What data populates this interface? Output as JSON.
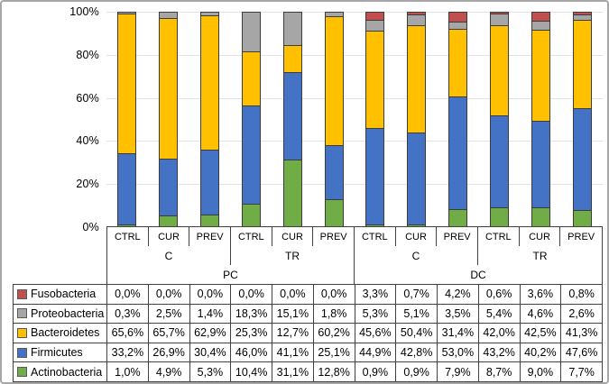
{
  "chart_data": {
    "type": "bar",
    "subtype": "100%-stacked-column",
    "title": "",
    "xlabel": "",
    "ylabel": "",
    "y_axis": {
      "ticks": [
        "100%",
        "80%",
        "60%",
        "40%",
        "20%",
        "0%"
      ],
      "min": 0,
      "max": 100,
      "grid": true
    },
    "categories": [
      "CTRL",
      "CUR",
      "PREV",
      "CTRL",
      "CUR",
      "PREV",
      "CTRL",
      "CUR",
      "PREV",
      "CTRL",
      "CUR",
      "PREV"
    ],
    "category_groups_mid": [
      {
        "label": "C",
        "span": 3
      },
      {
        "label": "TR",
        "span": 3
      },
      {
        "label": "C",
        "span": 3
      },
      {
        "label": "TR",
        "span": 3
      }
    ],
    "category_groups_top": [
      {
        "label": "PC",
        "span": 6
      },
      {
        "label": "DC",
        "span": 6
      }
    ],
    "series_stacking": "listed top-to-bottom within each bar",
    "series": [
      {
        "name": "Fusobacteria",
        "color": "#C0504D",
        "values": [
          0.0,
          0.0,
          0.0,
          0.0,
          0.0,
          0.0,
          3.3,
          0.7,
          4.2,
          0.6,
          3.6,
          0.8
        ]
      },
      {
        "name": "Proteobacteria",
        "color": "#A6A6A6",
        "values": [
          0.3,
          2.5,
          1.4,
          18.3,
          15.1,
          1.8,
          5.3,
          5.1,
          3.5,
          5.4,
          4.6,
          2.6
        ]
      },
      {
        "name": "Bacteroidetes",
        "color": "#FFC000",
        "values": [
          65.6,
          65.7,
          62.9,
          25.3,
          12.7,
          60.2,
          45.6,
          50.4,
          31.4,
          42.0,
          42.5,
          41.3
        ]
      },
      {
        "name": "Firmicutes",
        "color": "#4472C4",
        "values": [
          33.2,
          26.9,
          30.4,
          46.0,
          41.1,
          25.1,
          44.9,
          42.8,
          53.0,
          43.2,
          40.2,
          47.6
        ]
      },
      {
        "name": "Actinobacteria",
        "color": "#70AD47",
        "values": [
          1.0,
          4.9,
          5.3,
          10.4,
          31.1,
          12.8,
          0.9,
          0.9,
          7.9,
          8.7,
          9.0,
          7.7
        ]
      }
    ]
  },
  "table": {
    "rows": [
      {
        "label": "Fusobacteria",
        "swatch": "#C0504D",
        "cells": [
          "0,0%",
          "0,0%",
          "0,0%",
          "0,0%",
          "0,0%",
          "0,0%",
          "3,3%",
          "0,7%",
          "4,2%",
          "0,6%",
          "3,6%",
          "0,8%"
        ]
      },
      {
        "label": "Proteobacteria",
        "swatch": "#A6A6A6",
        "cells": [
          "0,3%",
          "2,5%",
          "1,4%",
          "18,3%",
          "15,1%",
          "1,8%",
          "5,3%",
          "5,1%",
          "3,5%",
          "5,4%",
          "4,6%",
          "2,6%"
        ]
      },
      {
        "label": "Bacteroidetes",
        "swatch": "#FFC000",
        "cells": [
          "65,6%",
          "65,7%",
          "62,9%",
          "25,3%",
          "12,7%",
          "60,2%",
          "45,6%",
          "50,4%",
          "31,4%",
          "42,0%",
          "42,5%",
          "41,3%"
        ]
      },
      {
        "label": "Firmicutes",
        "swatch": "#4472C4",
        "cells": [
          "33,2%",
          "26,9%",
          "30,4%",
          "46,0%",
          "41,1%",
          "25,1%",
          "44,9%",
          "42,8%",
          "53,0%",
          "43,2%",
          "40,2%",
          "47,6%"
        ]
      },
      {
        "label": "Actinobacteria",
        "swatch": "#70AD47",
        "cells": [
          "1,0%",
          "4,9%",
          "5,3%",
          "10,4%",
          "31,1%",
          "12,8%",
          "0,9%",
          "0,9%",
          "7,9%",
          "8,7%",
          "9,0%",
          "7,7%"
        ]
      }
    ]
  },
  "colors": {
    "axis_line": "#404040",
    "gridline": "#e3e3e3",
    "frame_border": "#a6a6a6"
  }
}
